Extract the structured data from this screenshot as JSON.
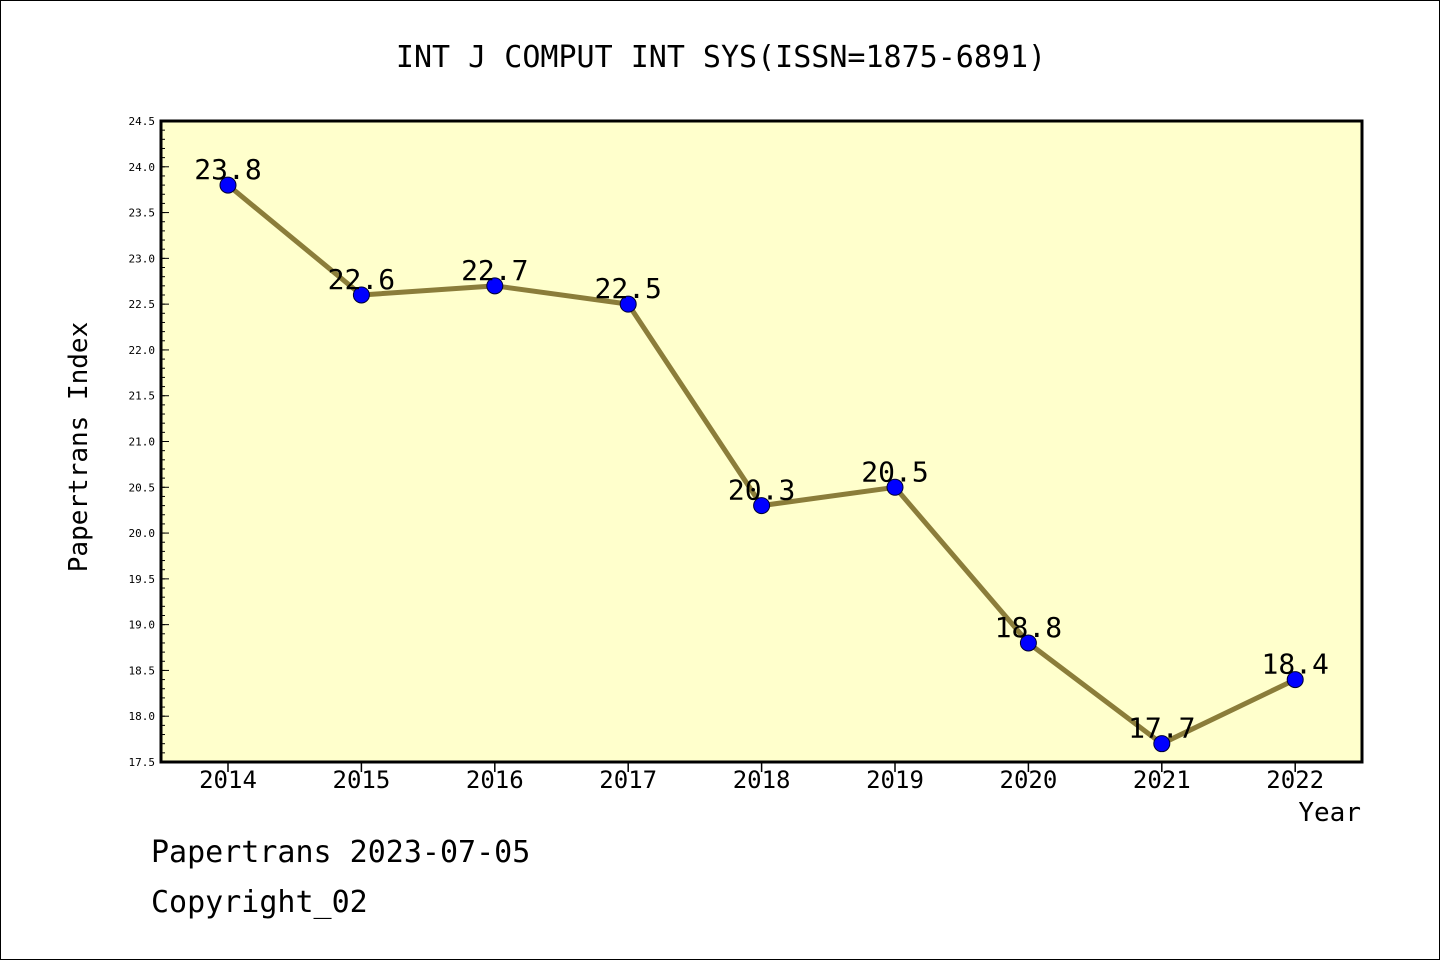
{
  "chart_data": {
    "type": "line",
    "title": "INT J COMPUT INT SYS(ISSN=1875-6891)",
    "xlabel": "Year",
    "ylabel": "Papertrans Index",
    "categories": [
      "2014",
      "2015",
      "2016",
      "2017",
      "2018",
      "2019",
      "2020",
      "2021",
      "2022"
    ],
    "series": [
      {
        "values": [
          23.8,
          22.6,
          22.7,
          22.5,
          20.3,
          20.5,
          18.8,
          17.7,
          18.4
        ],
        "labels": [
          "23.8",
          "22.6",
          "22.7",
          "22.5",
          "20.3",
          "20.5",
          "18.8",
          "17.7",
          "18.4"
        ]
      }
    ],
    "ylim": [
      17.5,
      24.5
    ],
    "yticks": [
      "17.5",
      "18.0",
      "18.5",
      "19.0",
      "19.5",
      "20.0",
      "20.5",
      "21.0",
      "21.5",
      "22.0",
      "22.5",
      "23.0",
      "23.5",
      "24.0",
      "24.5"
    ],
    "colors": {
      "plot_background": "#ffffcc",
      "line": "#8b7d3a",
      "marker": "#0000ff"
    },
    "grid": false
  },
  "footer": {
    "line1": "Papertrans 2023-07-05",
    "line2": "Copyright_02"
  }
}
